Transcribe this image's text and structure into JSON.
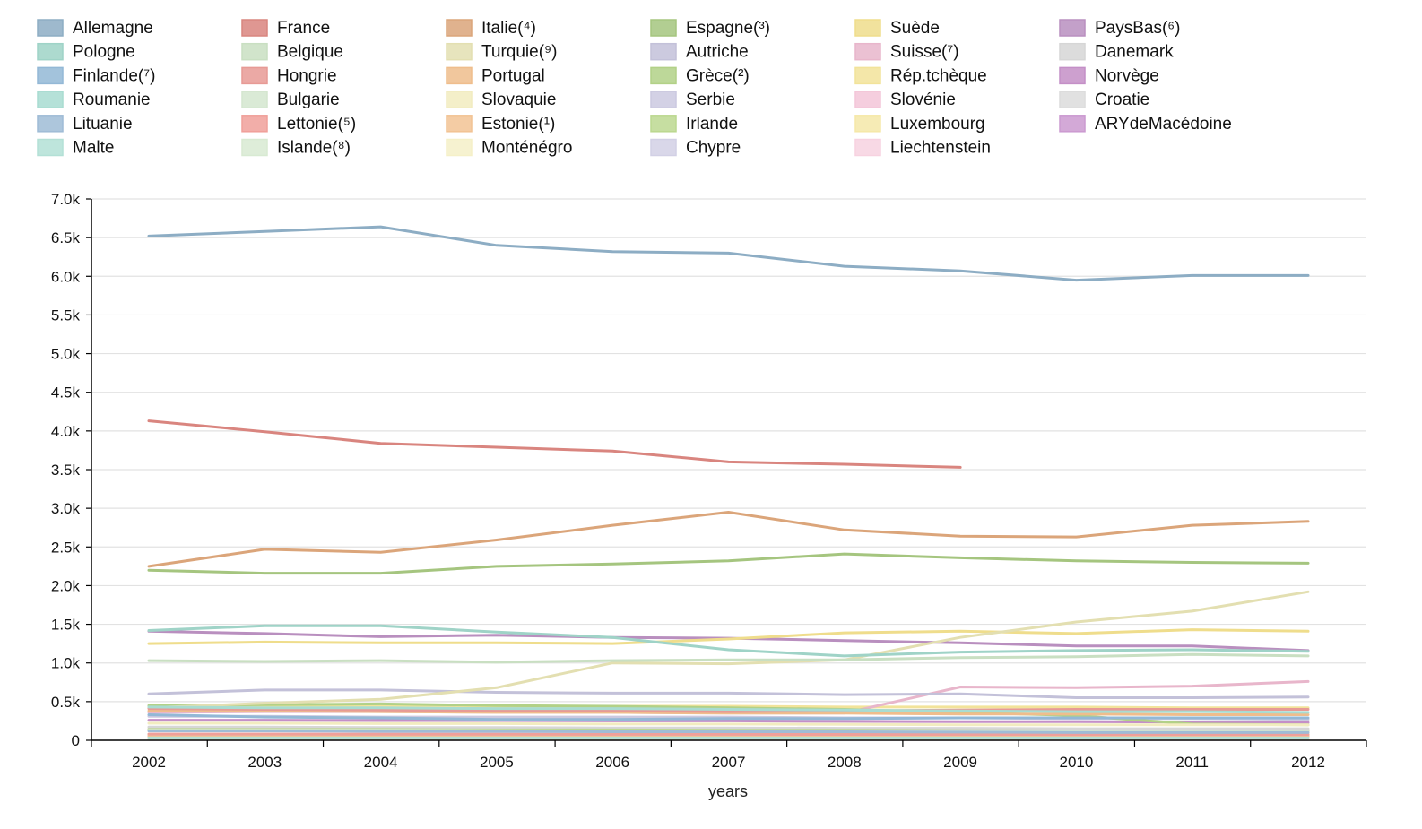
{
  "chart_data": {
    "type": "line",
    "xlabel": "years",
    "ylabel": "",
    "x": [
      2002,
      2003,
      2004,
      2005,
      2006,
      2007,
      2008,
      2009,
      2010,
      2011,
      2012
    ],
    "x_ticks": [
      "2002",
      "2003",
      "2004",
      "2005",
      "2006",
      "2007",
      "2008",
      "2009",
      "2010",
      "2011",
      "2012"
    ],
    "ylim": [
      0,
      7000
    ],
    "y_ticks": [
      {
        "value": 0,
        "label": "0"
      },
      {
        "value": 500,
        "label": "0.5k"
      },
      {
        "value": 1000,
        "label": "1.0k"
      },
      {
        "value": 1500,
        "label": "1.5k"
      },
      {
        "value": 2000,
        "label": "2.0k"
      },
      {
        "value": 2500,
        "label": "2.5k"
      },
      {
        "value": 3000,
        "label": "3.0k"
      },
      {
        "value": 3500,
        "label": "3.5k"
      },
      {
        "value": 4000,
        "label": "4.0k"
      },
      {
        "value": 4500,
        "label": "4.5k"
      },
      {
        "value": 5000,
        "label": "5.0k"
      },
      {
        "value": 5500,
        "label": "5.5k"
      },
      {
        "value": 6000,
        "label": "6.0k"
      },
      {
        "value": 6500,
        "label": "6.5k"
      },
      {
        "value": 7000,
        "label": "7.0k"
      }
    ],
    "grid": true,
    "legend_position": "top",
    "series": [
      {
        "name": "Allemagne",
        "color": "#8dadc4",
        "values": [
          6520,
          6580,
          6640,
          6400,
          6320,
          6300,
          6130,
          6070,
          5950,
          6010,
          6010
        ]
      },
      {
        "name": "Pologne",
        "color": "#9fd3c7",
        "values": [
          1420,
          1480,
          1480,
          1400,
          1330,
          1170,
          1090,
          1140,
          1160,
          1170,
          1150
        ]
      },
      {
        "name": "Finlande(⁷)",
        "color": "#93b8d6",
        "values": [
          330,
          300,
          290,
          270,
          270,
          280,
          280,
          290,
          290,
          290,
          290
        ]
      },
      {
        "name": "Roumanie",
        "color": "#a8dcd1",
        "values": [
          430,
          420,
          420,
          410,
          410,
          400,
          390,
          380,
          370,
          370,
          360
        ]
      },
      {
        "name": "Lituanie",
        "color": "#9fbcd6",
        "values": [
          120,
          120,
          115,
          115,
          110,
          110,
          110,
          105,
          100,
          100,
          100
        ]
      },
      {
        "name": "Malte",
        "color": "#b3e0d6",
        "values": [
          30,
          30,
          30,
          30,
          30,
          30,
          30,
          30,
          30,
          30,
          30
        ]
      },
      {
        "name": "France",
        "color": "#d9857f",
        "values": [
          4130,
          3990,
          3840,
          3790,
          3740,
          3600,
          3570,
          3530,
          null,
          null,
          null
        ]
      },
      {
        "name": "Belgique",
        "color": "#c9dfc2",
        "values": [
          1030,
          1020,
          1030,
          1010,
          1030,
          1040,
          1040,
          1070,
          1080,
          1110,
          1090
        ]
      },
      {
        "name": "Hongrie",
        "color": "#e79a95",
        "values": [
          410,
          400,
          390,
          380,
          380,
          370,
          380,
          390,
          400,
          400,
          400
        ]
      },
      {
        "name": "Bulgarie",
        "color": "#d4e6cf",
        "values": [
          130,
          130,
          130,
          125,
          120,
          120,
          120,
          120,
          115,
          115,
          110
        ]
      },
      {
        "name": "Lettonie(⁵)",
        "color": "#f0a09a",
        "values": [
          80,
          80,
          78,
          78,
          76,
          76,
          75,
          75,
          74,
          74,
          74
        ]
      },
      {
        "name": "Islande(⁸)",
        "color": "#d8ead2",
        "values": [
          25,
          25,
          25,
          25,
          25,
          25,
          25,
          25,
          25,
          25,
          25
        ]
      },
      {
        "name": "Italie(⁴)",
        "color": "#dba57a",
        "values": [
          2250,
          2470,
          2430,
          2590,
          2780,
          2950,
          2720,
          2640,
          2630,
          2780,
          2830
        ]
      },
      {
        "name": "Turquie(⁹)",
        "color": "#e3dfb1",
        "values": [
          420,
          480,
          530,
          680,
          1000,
          990,
          1040,
          1330,
          1530,
          1670,
          1920
        ]
      },
      {
        "name": "Portugal",
        "color": "#efbd8c",
        "values": [
          380,
          380,
          370,
          360,
          360,
          350,
          350,
          340,
          340,
          330,
          330
        ]
      },
      {
        "name": "Slovaquie",
        "color": "#f2ecc0",
        "values": [
          220,
          220,
          215,
          215,
          210,
          210,
          205,
          200,
          200,
          200,
          200
        ]
      },
      {
        "name": "Estonie(¹)",
        "color": "#f2c394",
        "values": [
          60,
          60,
          58,
          58,
          56,
          56,
          55,
          55,
          54,
          54,
          54
        ]
      },
      {
        "name": "Monténégro",
        "color": "#f5f0c8",
        "values": [
          15,
          15,
          15,
          15,
          15,
          15,
          15,
          15,
          15,
          15,
          15
        ]
      },
      {
        "name": "Espagne(³)",
        "color": "#a5c57f",
        "values": [
          2200,
          2160,
          2160,
          2250,
          2280,
          2320,
          2410,
          2360,
          2320,
          2300,
          2290
        ]
      },
      {
        "name": "Autriche",
        "color": "#c3c1d9",
        "values": [
          600,
          650,
          650,
          620,
          610,
          610,
          590,
          600,
          550,
          550,
          560
        ]
      },
      {
        "name": "Grèce(²)",
        "color": "#b2d187",
        "values": [
          450,
          460,
          470,
          450,
          440,
          420,
          400,
          360,
          320,
          210,
          200
        ]
      },
      {
        "name": "Serbie",
        "color": "#cbc9e0",
        "values": [
          310,
          310,
          300,
          300,
          300,
          300,
          290,
          290,
          280,
          280,
          270
        ]
      },
      {
        "name": "Irlande",
        "color": "#bcd890",
        "values": [
          140,
          140,
          140,
          135,
          135,
          130,
          130,
          125,
          120,
          120,
          120
        ]
      },
      {
        "name": "Chypre",
        "color": "#d2d0e5",
        "values": [
          40,
          40,
          40,
          40,
          40,
          40,
          40,
          40,
          40,
          40,
          40
        ]
      },
      {
        "name": "Suède",
        "color": "#efdd8c",
        "values": [
          1250,
          1270,
          1260,
          1260,
          1250,
          1310,
          1390,
          1410,
          1380,
          1430,
          1410
        ]
      },
      {
        "name": "Suisse(⁷)",
        "color": "#e8b6cb",
        "values": [
          360,
          370,
          370,
          360,
          360,
          350,
          350,
          690,
          680,
          700,
          760
        ]
      },
      {
        "name": "Rép.tchèque",
        "color": "#f2e39a",
        "values": [
          440,
          450,
          450,
          440,
          440,
          440,
          430,
          430,
          430,
          420,
          420
        ]
      },
      {
        "name": "Slovénie",
        "color": "#f3c6d8",
        "values": [
          80,
          80,
          80,
          80,
          78,
          78,
          76,
          76,
          75,
          75,
          75
        ]
      },
      {
        "name": "Luxembourg",
        "color": "#f5e8a8",
        "values": [
          35,
          35,
          35,
          35,
          35,
          35,
          35,
          35,
          35,
          35,
          35
        ]
      },
      {
        "name": "Liechtenstein",
        "color": "#f7d2e0",
        "values": [
          10,
          10,
          10,
          10,
          10,
          10,
          10,
          10,
          10,
          10,
          10
        ]
      },
      {
        "name": "PaysBas(⁶)",
        "color": "#b98fbf",
        "values": [
          1410,
          1380,
          1340,
          1360,
          1330,
          1320,
          1290,
          1260,
          1220,
          1220,
          1160
        ]
      },
      {
        "name": "Danemark",
        "color": "#d6d6d6",
        "values": [
          170,
          170,
          165,
          165,
          160,
          160,
          155,
          155,
          150,
          150,
          150
        ]
      },
      {
        "name": "Norvège",
        "color": "#c48fc7",
        "values": [
          260,
          260,
          255,
          255,
          250,
          250,
          245,
          240,
          240,
          235,
          230
        ]
      },
      {
        "name": "Croatie",
        "color": "#dcdcdc",
        "values": [
          150,
          150,
          145,
          145,
          140,
          140,
          140,
          135,
          135,
          130,
          130
        ]
      },
      {
        "name": "ARYdeMacédoine",
        "color": "#cb9ad0",
        "values": [
          50,
          50,
          50,
          50,
          50,
          50,
          50,
          50,
          50,
          50,
          50
        ]
      }
    ]
  }
}
